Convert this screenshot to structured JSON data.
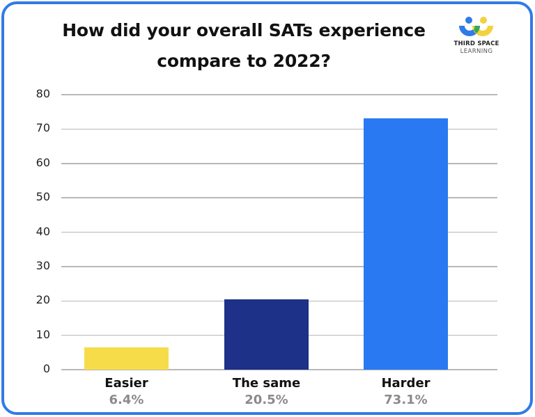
{
  "title_line1": "How did your overall SATs experience",
  "title_line2": "compare to 2022?",
  "logo": {
    "line1": "THIRD SPACE",
    "line2": "LEARNING",
    "colors": {
      "blue": "#2f7be8",
      "yellow": "#f3d13f",
      "green": "#3aa657"
    }
  },
  "border_color": "#2f7be8",
  "chart_data": {
    "type": "bar",
    "title": "How did your overall SATs experience compare to 2022?",
    "categories": [
      "Easier",
      "The same",
      "Harder"
    ],
    "values": [
      6.4,
      20.5,
      73.1
    ],
    "value_labels": [
      "6.4%",
      "20.5%",
      "73.1%"
    ],
    "colors": [
      "#f7dc4a",
      "#1c3187",
      "#2979f2"
    ],
    "xlabel": "",
    "ylabel": "",
    "ylim": [
      0,
      80
    ],
    "yticks": [
      0,
      10,
      20,
      30,
      40,
      50,
      60,
      70,
      80
    ],
    "grid": true,
    "legend": "none"
  }
}
